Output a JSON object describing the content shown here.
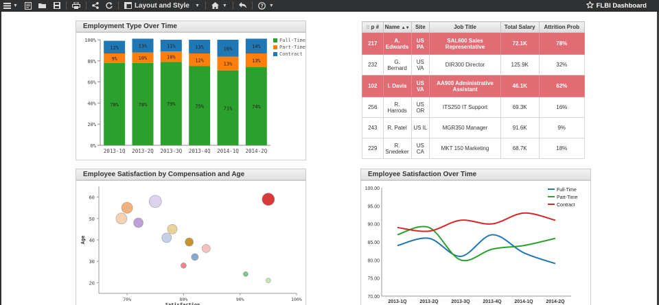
{
  "toolbar": {
    "layout_label": "Layout and Style",
    "dashboard_title": "FLBI Dashboard",
    "icons": [
      "menu-icon",
      "report-icon",
      "open-folder-icon",
      "save-icon",
      "print-icon",
      "share-icon",
      "refresh-icon",
      "layout-icon",
      "home-icon",
      "undo-icon",
      "help-icon",
      "star-icon"
    ]
  },
  "panels": {
    "employment": {
      "title": "Employment Type Over Time"
    },
    "table": {
      "columns": [
        "p #",
        "Name",
        "Site",
        "Job Title",
        "Total Salary",
        "Attrition Prob"
      ],
      "rows": [
        {
          "id": "217",
          "name": "A. Edwards",
          "site": "US PA",
          "title": "SAL600 Sales Representative",
          "salary": "72.1K",
          "attrition": "78%",
          "highlight": true
        },
        {
          "id": "232",
          "name": "G. Bernard",
          "site": "US VA",
          "title": "DIR300 Director",
          "salary": "125.9K",
          "attrition": "32%",
          "highlight": false
        },
        {
          "id": "102",
          "name": "I. Davis",
          "site": "US VA",
          "title": "AA900 Administrative Assistant",
          "salary": "46.1K",
          "attrition": "62%",
          "highlight": true
        },
        {
          "id": "256",
          "name": "R. Harrods",
          "site": "US OR",
          "title": "ITS250 IT Support",
          "salary": "69.3K",
          "attrition": "16%",
          "highlight": false
        },
        {
          "id": "243",
          "name": "R. Patel",
          "site": "US IL",
          "title": "MGR350 Manager",
          "salary": "91.6K",
          "attrition": "9%",
          "highlight": false
        },
        {
          "id": "229",
          "name": "R. Snedeker",
          "site": "US CA",
          "title": "MKT 150 Marketing",
          "salary": "68.7K",
          "attrition": "18%",
          "highlight": false
        }
      ]
    },
    "satisfaction_comp": {
      "title": "Employee Satisfaction by Compensation and Age"
    },
    "satisfaction_time": {
      "title": "Employee Satisfaction Over Time"
    }
  },
  "colors": {
    "full_time_bar": "#2ca02c",
    "part_time_bar": "#ff7f0e",
    "contract_bar": "#1f77b4",
    "full_time_line": "#1f77b4",
    "part_time_line": "#2ca02c",
    "contract_line": "#d62728",
    "row_highlight": "#e16c74"
  },
  "chart_data": [
    {
      "type": "bar",
      "stacked": true,
      "title": "Employment Type Over Time",
      "categories": [
        "2013-1Q",
        "2013-2Q",
        "2013-3Q",
        "2013-4Q",
        "2014-1Q",
        "2014-2Q"
      ],
      "series": [
        {
          "name": "Full-Time",
          "values": [
            78,
            78,
            79,
            75,
            71,
            74
          ]
        },
        {
          "name": "Part-Time",
          "values": [
            9,
            10,
            10,
            12,
            13,
            13
          ]
        },
        {
          "name": "Contract",
          "values": [
            12,
            13,
            11,
            13,
            16,
            14
          ]
        }
      ],
      "y_ticks": [
        "0%",
        "20%",
        "40%",
        "60%",
        "80%",
        "100%"
      ],
      "ylim": [
        0,
        100
      ],
      "legend": "top-right"
    },
    {
      "type": "scatter",
      "title": "Employee Satisfaction by Compensation and Age",
      "xlabel": "Satisfaction",
      "ylabel": "Age",
      "x_ticks": [
        "70%",
        "80%",
        "90%",
        "100%"
      ],
      "y_ticks": [
        "20",
        "30",
        "40",
        "50",
        "60"
      ],
      "xlim": [
        65,
        100
      ],
      "ylim": [
        15,
        65
      ],
      "points": [
        {
          "x": 69,
          "y": 50,
          "r": 8,
          "color": "#f6d3b0"
        },
        {
          "x": 70,
          "y": 55,
          "r": 8,
          "color": "#f3b07b"
        },
        {
          "x": 72,
          "y": 48,
          "r": 7,
          "color": "#bfa0d4"
        },
        {
          "x": 75,
          "y": 58,
          "r": 9,
          "color": "#ddd3ec"
        },
        {
          "x": 77,
          "y": 41,
          "r": 7,
          "color": "#c4cfe8"
        },
        {
          "x": 78,
          "y": 45,
          "r": 7,
          "color": "#ead39a"
        },
        {
          "x": 80,
          "y": 28,
          "r": 4,
          "color": "#e8888a"
        },
        {
          "x": 81,
          "y": 39,
          "r": 6,
          "color": "#c79433"
        },
        {
          "x": 82,
          "y": 32,
          "r": 5,
          "color": "#86a8d1"
        },
        {
          "x": 84,
          "y": 36,
          "r": 6,
          "color": "#f4c0c0"
        },
        {
          "x": 91,
          "y": 24,
          "r": 3.5,
          "color": "#82c785"
        },
        {
          "x": 95,
          "y": 21,
          "r": 3.5,
          "color": "#c8e6b4"
        },
        {
          "x": 95,
          "y": 59,
          "r": 9,
          "color": "#d83a3a"
        }
      ]
    },
    {
      "type": "line",
      "title": "Employee Satisfaction Over Time",
      "categories": [
        "2013-1Q",
        "2013-2Q",
        "2013-3Q",
        "2013-4Q",
        "2014-1Q",
        "2014-2Q"
      ],
      "series": [
        {
          "name": "Full-Time",
          "values": [
            84,
            86,
            81,
            87,
            82,
            79
          ]
        },
        {
          "name": "Part-Time",
          "values": [
            87,
            89,
            80,
            83,
            84,
            86
          ]
        },
        {
          "name": "Contract",
          "values": [
            89,
            88,
            91,
            90,
            93,
            91
          ]
        }
      ],
      "y_ticks": [
        "70.00",
        "75.00",
        "80.00",
        "85.00",
        "90.00",
        "95.00",
        "100.00"
      ],
      "ylim": [
        70,
        100
      ],
      "legend": "top-right"
    }
  ]
}
